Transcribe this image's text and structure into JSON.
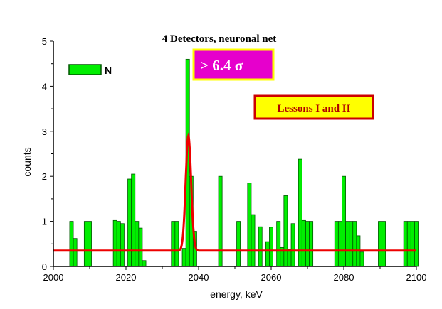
{
  "chart_data": {
    "type": "bar",
    "title": "4 Detectors, neuronal net",
    "xlabel": "energy, keV",
    "ylabel": "counts",
    "xlim": [
      2000,
      2100
    ],
    "ylim": [
      0,
      5
    ],
    "xticks": [
      2000,
      2020,
      2040,
      2060,
      2080,
      2100
    ],
    "xtick_labels": [
      "2000",
      "2020",
      "2040",
      "2060",
      "2080",
      "2100"
    ],
    "yticks": [
      0,
      1,
      2,
      3,
      4,
      5
    ],
    "ytick_labels": [
      "0",
      "1",
      "2",
      "3",
      "4",
      "5"
    ],
    "bin_width": 1,
    "legend": {
      "entries": [
        "N"
      ],
      "placement": "top-left"
    },
    "bars": [
      {
        "x": 2005,
        "y": 1.0
      },
      {
        "x": 2006,
        "y": 0.62
      },
      {
        "x": 2009,
        "y": 1.0
      },
      {
        "x": 2010,
        "y": 1.0
      },
      {
        "x": 2017,
        "y": 1.02
      },
      {
        "x": 2018,
        "y": 1.0
      },
      {
        "x": 2019,
        "y": 0.95
      },
      {
        "x": 2021,
        "y": 1.94
      },
      {
        "x": 2022,
        "y": 2.05
      },
      {
        "x": 2023,
        "y": 1.0
      },
      {
        "x": 2024,
        "y": 0.85
      },
      {
        "x": 2025,
        "y": 0.13
      },
      {
        "x": 2033,
        "y": 1.0
      },
      {
        "x": 2034,
        "y": 1.0
      },
      {
        "x": 2036,
        "y": 0.4
      },
      {
        "x": 2037,
        "y": 4.6
      },
      {
        "x": 2038,
        "y": 2.0
      },
      {
        "x": 2039,
        "y": 0.78
      },
      {
        "x": 2046,
        "y": 2.0
      },
      {
        "x": 2051,
        "y": 1.0
      },
      {
        "x": 2054,
        "y": 1.85
      },
      {
        "x": 2055,
        "y": 1.15
      },
      {
        "x": 2057,
        "y": 0.88
      },
      {
        "x": 2059,
        "y": 0.55
      },
      {
        "x": 2060,
        "y": 0.87
      },
      {
        "x": 2062,
        "y": 1.0
      },
      {
        "x": 2063,
        "y": 0.42
      },
      {
        "x": 2064,
        "y": 1.57
      },
      {
        "x": 2065,
        "y": 0.38
      },
      {
        "x": 2066,
        "y": 0.95
      },
      {
        "x": 2068,
        "y": 2.38
      },
      {
        "x": 2069,
        "y": 1.02
      },
      {
        "x": 2070,
        "y": 1.0
      },
      {
        "x": 2071,
        "y": 1.0
      },
      {
        "x": 2078,
        "y": 1.0
      },
      {
        "x": 2079,
        "y": 1.0
      },
      {
        "x": 2080,
        "y": 2.0
      },
      {
        "x": 2081,
        "y": 1.0
      },
      {
        "x": 2082,
        "y": 1.0
      },
      {
        "x": 2083,
        "y": 1.0
      },
      {
        "x": 2084,
        "y": 0.68
      },
      {
        "x": 2085,
        "y": 0.32
      },
      {
        "x": 2090,
        "y": 1.0
      },
      {
        "x": 2091,
        "y": 1.0
      },
      {
        "x": 2097,
        "y": 1.0
      },
      {
        "x": 2098,
        "y": 1.0
      },
      {
        "x": 2099,
        "y": 1.0
      },
      {
        "x": 2100,
        "y": 1.0
      }
    ],
    "fit": {
      "type": "gaussian",
      "baseline": 0.35,
      "peak": 2.9,
      "center": 2037.2,
      "sigma": 0.75
    },
    "annotations": [
      {
        "text": "> 6.4 σ",
        "box_color": "#e600cc",
        "border_color": "#ffff00",
        "text_color": "#ffffff"
      },
      {
        "text": "Lessons I and II",
        "box_color": "#ffff00",
        "border_color": "#cc0000",
        "text_color": "#b00000"
      }
    ],
    "colors": {
      "bars": "#00ee00",
      "bar_edge": "#005500",
      "fit_line": "#ee0000"
    }
  }
}
